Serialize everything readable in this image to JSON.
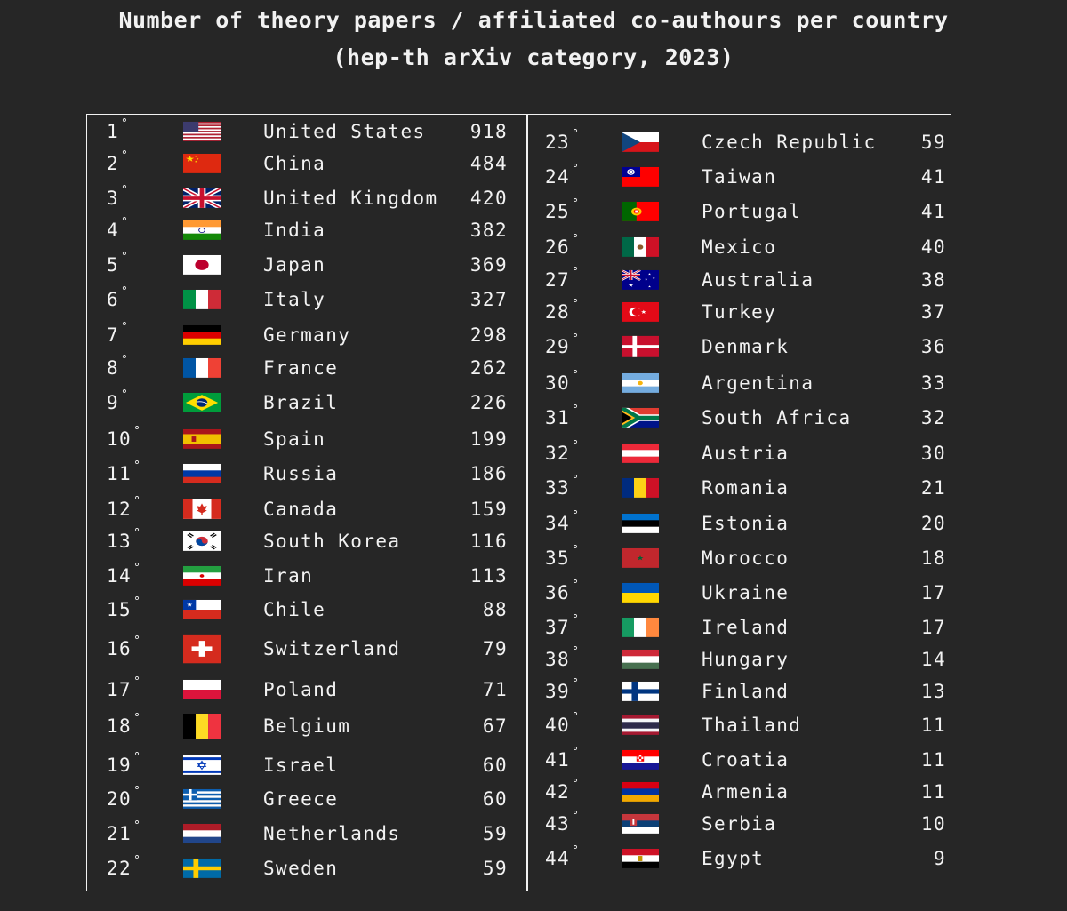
{
  "title_line1": "Number of theory papers / affiliated co-authours per country",
  "title_line2": "(hep-th arXiv category, 2023)",
  "chart_data": {
    "type": "table",
    "columns": [
      "rank",
      "flag",
      "country",
      "count"
    ],
    "rows": [
      {
        "rank": "1",
        "country": "United States",
        "value": 918,
        "flag": "us-flag"
      },
      {
        "rank": "2",
        "country": "China",
        "value": 484,
        "flag": "cn-flag"
      },
      {
        "rank": "3",
        "country": "United Kingdom",
        "value": 420,
        "flag": "gb-flag"
      },
      {
        "rank": "4",
        "country": "India",
        "value": 382,
        "flag": "in-flag"
      },
      {
        "rank": "5",
        "country": "Japan",
        "value": 369,
        "flag": "jp-flag"
      },
      {
        "rank": "6",
        "country": "Italy",
        "value": 327,
        "flag": "it-flag"
      },
      {
        "rank": "7",
        "country": "Germany",
        "value": 298,
        "flag": "de-flag"
      },
      {
        "rank": "8",
        "country": "France",
        "value": 262,
        "flag": "fr-flag"
      },
      {
        "rank": "9",
        "country": "Brazil",
        "value": 226,
        "flag": "br-flag"
      },
      {
        "rank": "10",
        "country": "Spain",
        "value": 199,
        "flag": "es-flag"
      },
      {
        "rank": "11",
        "country": "Russia",
        "value": 186,
        "flag": "ru-flag"
      },
      {
        "rank": "12",
        "country": "Canada",
        "value": 159,
        "flag": "ca-flag"
      },
      {
        "rank": "13",
        "country": "South Korea",
        "value": 116,
        "flag": "kr-flag"
      },
      {
        "rank": "14",
        "country": "Iran",
        "value": 113,
        "flag": "ir-flag"
      },
      {
        "rank": "15",
        "country": "Chile",
        "value": 88,
        "flag": "cl-flag"
      },
      {
        "rank": "16",
        "country": "Switzerland",
        "value": 79,
        "flag": "ch-flag"
      },
      {
        "rank": "17",
        "country": "Poland",
        "value": 71,
        "flag": "pl-flag"
      },
      {
        "rank": "18",
        "country": "Belgium",
        "value": 67,
        "flag": "be-flag"
      },
      {
        "rank": "19",
        "country": "Israel",
        "value": 60,
        "flag": "il-flag"
      },
      {
        "rank": "20",
        "country": "Greece",
        "value": 60,
        "flag": "gr-flag"
      },
      {
        "rank": "21",
        "country": "Netherlands",
        "value": 59,
        "flag": "nl-flag"
      },
      {
        "rank": "22",
        "country": "Sweden",
        "value": 59,
        "flag": "se-flag"
      },
      {
        "rank": "23",
        "country": "Czech Republic",
        "value": 59,
        "flag": "cz-flag"
      },
      {
        "rank": "24",
        "country": "Taiwan",
        "value": 41,
        "flag": "tw-flag"
      },
      {
        "rank": "25",
        "country": "Portugal",
        "value": 41,
        "flag": "pt-flag"
      },
      {
        "rank": "26",
        "country": "Mexico",
        "value": 40,
        "flag": "mx-flag"
      },
      {
        "rank": "27",
        "country": "Australia",
        "value": 38,
        "flag": "au-flag"
      },
      {
        "rank": "28",
        "country": "Turkey",
        "value": 37,
        "flag": "tr-flag"
      },
      {
        "rank": "29",
        "country": "Denmark",
        "value": 36,
        "flag": "dk-flag"
      },
      {
        "rank": "30",
        "country": "Argentina",
        "value": 33,
        "flag": "ar-flag"
      },
      {
        "rank": "31",
        "country": "South Africa",
        "value": 32,
        "flag": "za-flag"
      },
      {
        "rank": "32",
        "country": "Austria",
        "value": 30,
        "flag": "at-flag"
      },
      {
        "rank": "33",
        "country": "Romania",
        "value": 21,
        "flag": "ro-flag"
      },
      {
        "rank": "34",
        "country": "Estonia",
        "value": 20,
        "flag": "ee-flag"
      },
      {
        "rank": "35",
        "country": "Morocco",
        "value": 18,
        "flag": "ma-flag"
      },
      {
        "rank": "36",
        "country": "Ukraine",
        "value": 17,
        "flag": "ua-flag"
      },
      {
        "rank": "37",
        "country": "Ireland",
        "value": 17,
        "flag": "ie-flag"
      },
      {
        "rank": "38",
        "country": "Hungary",
        "value": 14,
        "flag": "hu-flag"
      },
      {
        "rank": "39",
        "country": "Finland",
        "value": 13,
        "flag": "fi-flag"
      },
      {
        "rank": "40",
        "country": "Thailand",
        "value": 11,
        "flag": "th-flag"
      },
      {
        "rank": "41",
        "country": "Croatia",
        "value": 11,
        "flag": "hr-flag"
      },
      {
        "rank": "42",
        "country": "Armenia",
        "value": 11,
        "flag": "am-flag"
      },
      {
        "rank": "43",
        "country": "Serbia",
        "value": 10,
        "flag": "rs-flag"
      },
      {
        "rank": "44",
        "country": "Egypt",
        "value": 9,
        "flag": "eg-flag"
      }
    ]
  }
}
